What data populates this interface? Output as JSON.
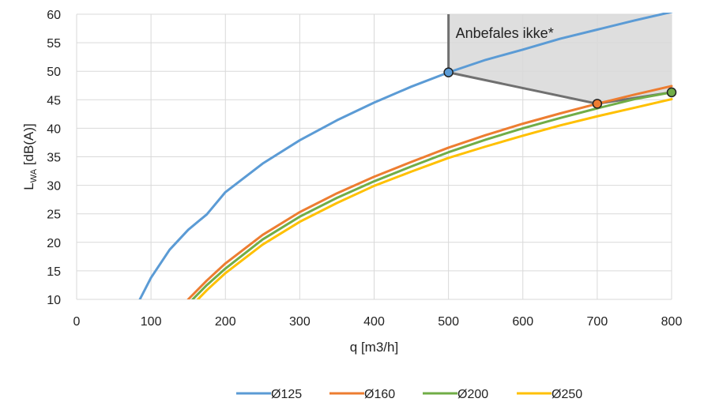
{
  "chart_data": {
    "type": "line",
    "title": "",
    "xlabel": "q [m3/h]",
    "ylabel": {
      "main": "L",
      "sub": "WA",
      "rest": " [dB(A)]"
    },
    "xlim": [
      0,
      800
    ],
    "ylim": [
      10,
      60
    ],
    "xticks": [
      0,
      100,
      200,
      300,
      400,
      500,
      600,
      700,
      800
    ],
    "yticks": [
      10,
      15,
      20,
      25,
      30,
      35,
      40,
      45,
      50,
      55,
      60
    ],
    "grid": true,
    "legend_position": "bottom",
    "series": [
      {
        "name": "Ø125",
        "color": "#5B9BD5",
        "points": [
          [
            85,
            10
          ],
          [
            100,
            13.8
          ],
          [
            125,
            18.7
          ],
          [
            150,
            22.2
          ],
          [
            175,
            24.9
          ],
          [
            200,
            28.8
          ],
          [
            250,
            33.8
          ],
          [
            300,
            37.9
          ],
          [
            350,
            41.4
          ],
          [
            400,
            44.5
          ],
          [
            450,
            47.3
          ],
          [
            500,
            49.8
          ],
          [
            550,
            52.0
          ],
          [
            600,
            53.8
          ],
          [
            650,
            55.7
          ],
          [
            700,
            57.3
          ],
          [
            750,
            58.9
          ],
          [
            800,
            60.4
          ]
        ]
      },
      {
        "name": "Ø160",
        "color": "#ED7D31",
        "points": [
          [
            150,
            10
          ],
          [
            175,
            13.3
          ],
          [
            200,
            16.3
          ],
          [
            250,
            21.3
          ],
          [
            300,
            25.3
          ],
          [
            350,
            28.6
          ],
          [
            400,
            31.5
          ],
          [
            450,
            34.1
          ],
          [
            500,
            36.6
          ],
          [
            550,
            38.8
          ],
          [
            600,
            40.8
          ],
          [
            650,
            42.6
          ],
          [
            700,
            44.3
          ],
          [
            750,
            45.9
          ],
          [
            800,
            47.4
          ]
        ]
      },
      {
        "name": "Ø200",
        "color": "#70AD47",
        "points": [
          [
            156,
            10
          ],
          [
            175,
            12.5
          ],
          [
            200,
            15.4
          ],
          [
            250,
            20.5
          ],
          [
            300,
            24.5
          ],
          [
            350,
            27.8
          ],
          [
            400,
            30.7
          ],
          [
            450,
            33.3
          ],
          [
            500,
            35.8
          ],
          [
            550,
            38.0
          ],
          [
            600,
            40.0
          ],
          [
            650,
            41.8
          ],
          [
            700,
            43.5
          ],
          [
            750,
            45.1
          ],
          [
            800,
            46.3
          ]
        ]
      },
      {
        "name": "Ø250",
        "color": "#FFC000",
        "points": [
          [
            163,
            10
          ],
          [
            175,
            11.6
          ],
          [
            200,
            14.6
          ],
          [
            250,
            19.6
          ],
          [
            300,
            23.6
          ],
          [
            350,
            26.9
          ],
          [
            400,
            29.9
          ],
          [
            450,
            32.4
          ],
          [
            500,
            34.8
          ],
          [
            550,
            36.8
          ],
          [
            600,
            38.7
          ],
          [
            650,
            40.5
          ],
          [
            700,
            42.1
          ],
          [
            750,
            43.6
          ],
          [
            800,
            45.1
          ]
        ]
      }
    ],
    "markers": [
      {
        "x": 500,
        "y": 49.8,
        "color": "#5B9BD5"
      },
      {
        "x": 700,
        "y": 44.3,
        "color": "#ED7D31"
      },
      {
        "x": 800,
        "y": 46.3,
        "color": "#70AD47"
      }
    ],
    "shaded_region": {
      "label": "Anbefales ikke*",
      "fill": "#DEDEDE",
      "border_color": "#707070",
      "boundary": [
        [
          500,
          49.8
        ],
        [
          700,
          44.3
        ],
        [
          800,
          46.3
        ]
      ]
    }
  }
}
